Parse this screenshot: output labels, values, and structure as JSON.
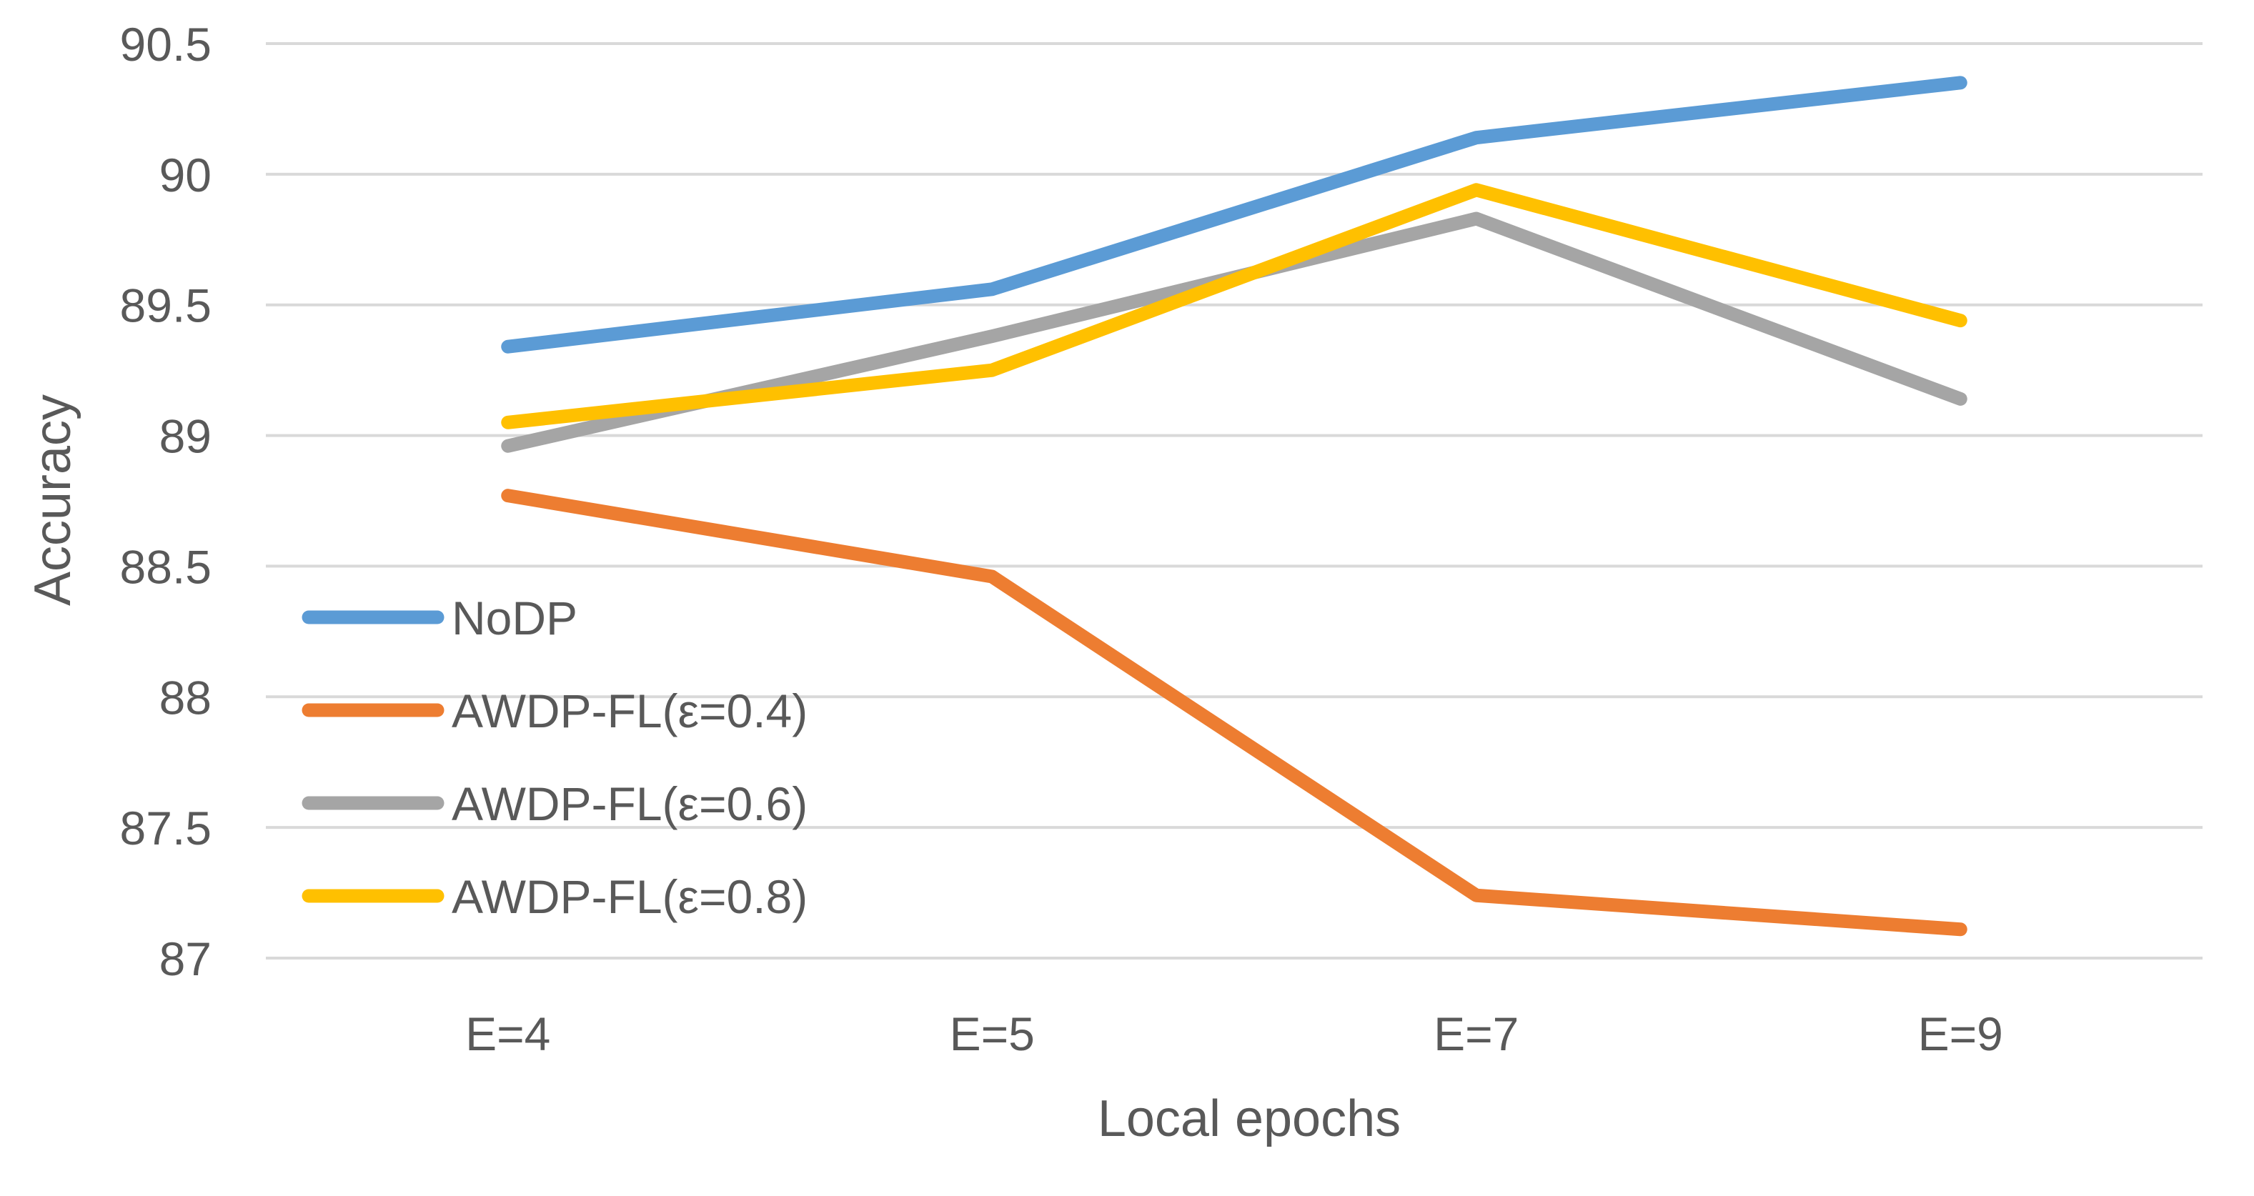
{
  "chart_data": {
    "type": "line",
    "title": "",
    "xlabel": "Local epochs",
    "ylabel": "Accuracy",
    "categories": [
      "E=4",
      "E=5",
      "E=7",
      "E=9"
    ],
    "ylim": [
      87,
      90.5
    ],
    "yticks": [
      87,
      87.5,
      88,
      88.5,
      89,
      89.5,
      90,
      90.5
    ],
    "ytick_labels": [
      "87",
      "87.5",
      "88",
      "88.5",
      "89",
      "89.5",
      "90",
      "90.5"
    ],
    "grid": true,
    "legend_position": "bottom-left",
    "series": [
      {
        "name": "NoDP",
        "color": "#5B9BD5",
        "values": [
          89.34,
          89.56,
          90.14,
          90.35
        ]
      },
      {
        "name": "AWDP-FL(ε=0.4)",
        "color": "#ED7D31",
        "values": [
          88.77,
          88.46,
          87.24,
          87.11
        ]
      },
      {
        "name": "AWDP-FL(ε=0.6)",
        "color": "#A5A5A5",
        "values": [
          88.96,
          89.38,
          89.83,
          89.14
        ]
      },
      {
        "name": "AWDP-FL(ε=0.8)",
        "color": "#FFC000",
        "values": [
          89.05,
          89.25,
          89.94,
          89.44
        ]
      }
    ]
  }
}
